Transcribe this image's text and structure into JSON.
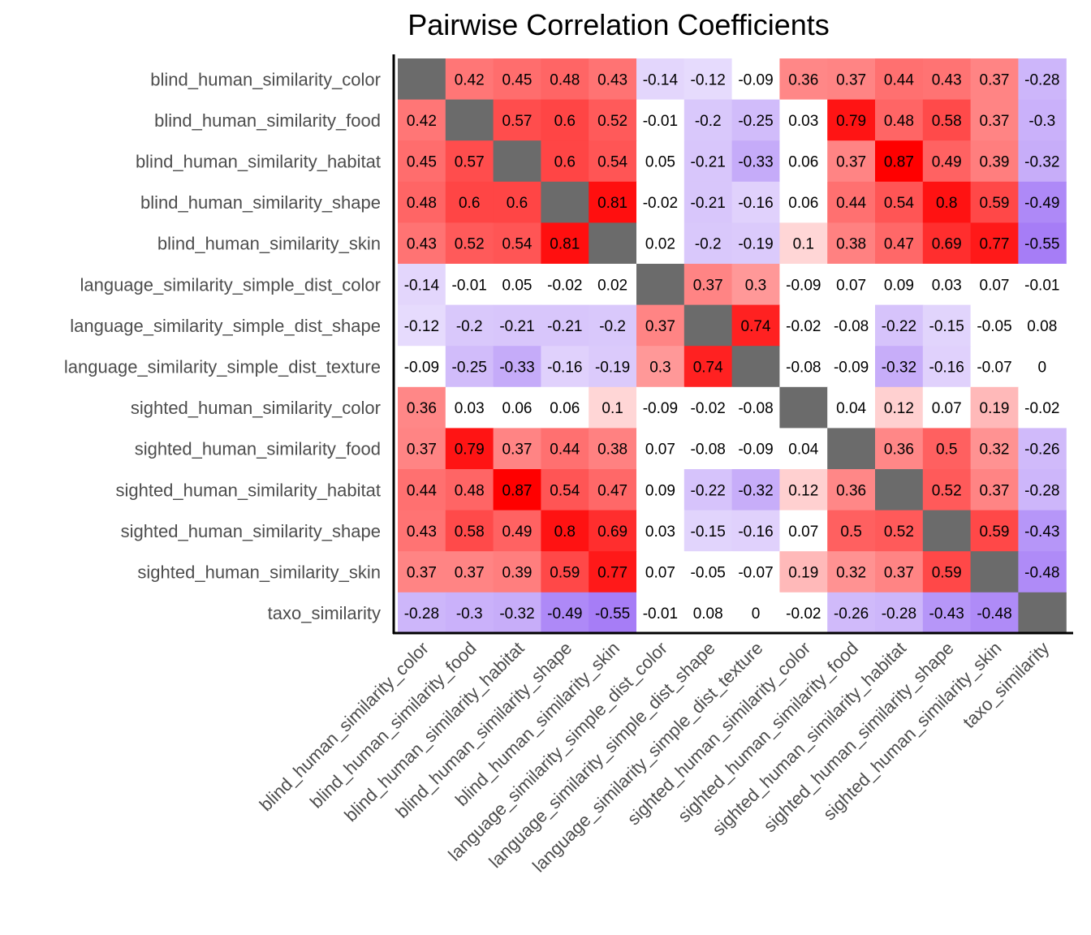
{
  "chart_data": {
    "type": "heatmap",
    "title": "Pairwise Correlation Coefficients",
    "variables": [
      "blind_human_similarity_color",
      "blind_human_similarity_food",
      "blind_human_similarity_habitat",
      "blind_human_similarity_shape",
      "blind_human_similarity_skin",
      "language_similarity_simple_dist_color",
      "language_similarity_simple_dist_shape",
      "language_similarity_simple_dist_texture",
      "sighted_human_similarity_color",
      "sighted_human_similarity_food",
      "sighted_human_similarity_habitat",
      "sighted_human_similarity_shape",
      "sighted_human_similarity_skin",
      "taxo_similarity"
    ],
    "values": [
      [
        null,
        0.42,
        0.45,
        0.48,
        0.43,
        -0.14,
        -0.12,
        -0.09,
        0.36,
        0.37,
        0.44,
        0.43,
        0.37,
        -0.28
      ],
      [
        0.42,
        null,
        0.57,
        0.6,
        0.52,
        -0.01,
        -0.2,
        -0.25,
        0.03,
        0.79,
        0.48,
        0.58,
        0.37,
        -0.3
      ],
      [
        0.45,
        0.57,
        null,
        0.6,
        0.54,
        0.05,
        -0.21,
        -0.33,
        0.06,
        0.37,
        0.87,
        0.49,
        0.39,
        -0.32
      ],
      [
        0.48,
        0.6,
        0.6,
        null,
        0.81,
        -0.02,
        -0.21,
        -0.16,
        0.06,
        0.44,
        0.54,
        0.8,
        0.59,
        -0.49
      ],
      [
        0.43,
        0.52,
        0.54,
        0.81,
        null,
        0.02,
        -0.2,
        -0.19,
        0.1,
        0.38,
        0.47,
        0.69,
        0.77,
        -0.55
      ],
      [
        -0.14,
        -0.01,
        0.05,
        -0.02,
        0.02,
        null,
        0.37,
        0.3,
        -0.09,
        0.07,
        0.09,
        0.03,
        0.07,
        -0.01
      ],
      [
        -0.12,
        -0.2,
        -0.21,
        -0.21,
        -0.2,
        0.37,
        null,
        0.74,
        -0.02,
        -0.08,
        -0.22,
        -0.15,
        -0.05,
        0.08
      ],
      [
        -0.09,
        -0.25,
        -0.33,
        -0.16,
        -0.19,
        0.3,
        0.74,
        null,
        -0.08,
        -0.09,
        -0.32,
        -0.16,
        -0.07,
        0
      ],
      [
        0.36,
        0.03,
        0.06,
        0.06,
        0.1,
        -0.09,
        -0.02,
        -0.08,
        null,
        0.04,
        0.12,
        0.07,
        0.19,
        -0.02
      ],
      [
        0.37,
        0.79,
        0.37,
        0.44,
        0.38,
        0.07,
        -0.08,
        -0.09,
        0.04,
        null,
        0.36,
        0.5,
        0.32,
        -0.26
      ],
      [
        0.44,
        0.48,
        0.87,
        0.54,
        0.47,
        0.09,
        -0.22,
        -0.32,
        0.12,
        0.36,
        null,
        0.52,
        0.37,
        -0.28
      ],
      [
        0.43,
        0.58,
        0.49,
        0.8,
        0.69,
        0.03,
        -0.15,
        -0.16,
        0.07,
        0.5,
        0.52,
        null,
        0.59,
        -0.43
      ],
      [
        0.37,
        0.37,
        0.39,
        0.59,
        0.77,
        0.07,
        -0.05,
        -0.07,
        0.19,
        0.32,
        0.37,
        0.59,
        null,
        -0.48
      ],
      [
        -0.28,
        -0.3,
        -0.32,
        -0.49,
        -0.55,
        -0.01,
        0.08,
        0,
        -0.02,
        -0.26,
        -0.28,
        -0.43,
        -0.48,
        null
      ]
    ],
    "colors": {
      "positive": "#ff0000",
      "negative": "#7b3ff2",
      "neutral": "#ffffff",
      "diagonal": "#6b6b6b",
      "axis_line": "#000000",
      "text": "#000000",
      "axis_text": "#4d4d4d"
    },
    "grid": false,
    "legend": "none"
  }
}
